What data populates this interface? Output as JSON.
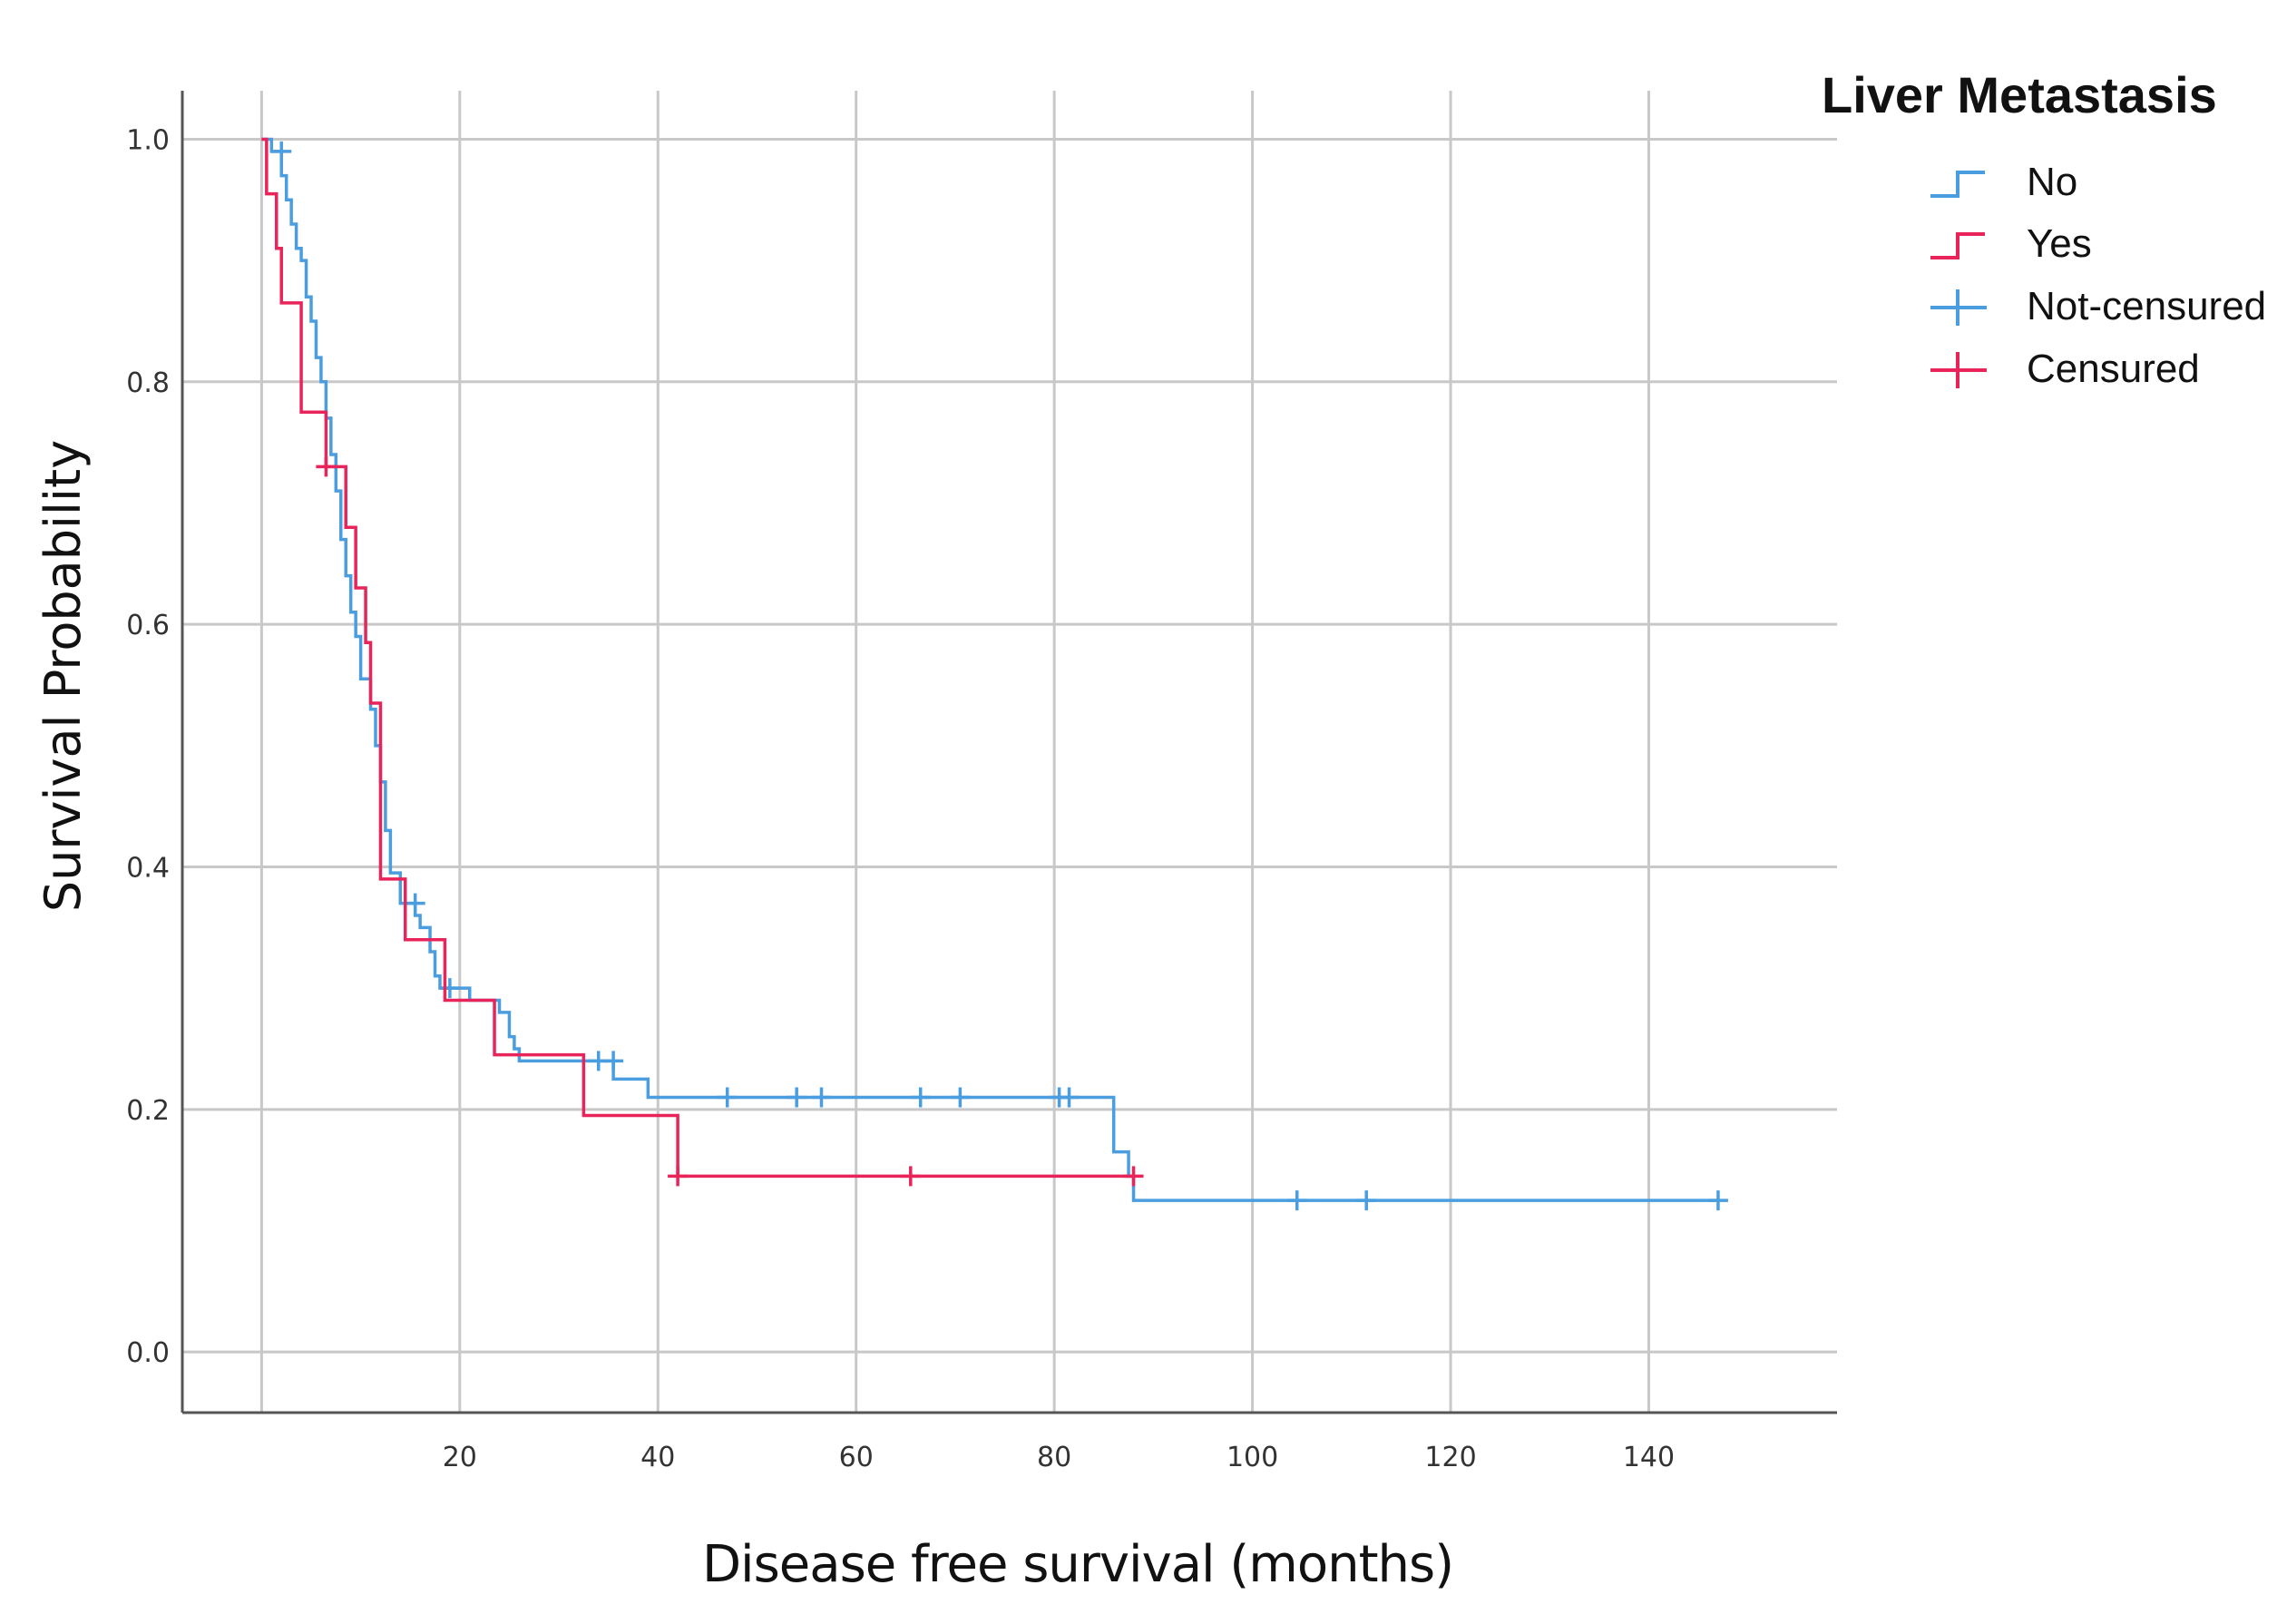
{
  "chart_data": {
    "type": "line",
    "subtype": "kaplan-meier",
    "xlabel": "Disease free survival (months)",
    "ylabel": "Survival Probability",
    "xlim": [
      -8,
      159
    ],
    "ylim": [
      -0.05,
      1.04
    ],
    "x_ticks": [
      20,
      40,
      60,
      80,
      100,
      120,
      140
    ],
    "y_ticks": [
      0.0,
      0.2,
      0.4,
      0.6,
      0.8,
      1.0
    ],
    "x_tick_labels": [
      "20",
      "40",
      "60",
      "80",
      "100",
      "120",
      "140"
    ],
    "y_tick_labels": [
      "0.0",
      "0.2",
      "0.4",
      "0.6",
      "0.8",
      "1.0"
    ],
    "grid": true,
    "legend": {
      "title": "Liver Metastasis",
      "placement": "top-right",
      "entries": [
        {
          "label": "No",
          "kind": "line",
          "color": "#4a9ee0"
        },
        {
          "label": "Yes",
          "kind": "line",
          "color": "#e8245a"
        },
        {
          "label": "Not-censured",
          "kind": "censor",
          "color": "#4a9ee0"
        },
        {
          "label": "Censured",
          "kind": "censor",
          "color": "#e8245a"
        }
      ]
    },
    "series": [
      {
        "name": "No",
        "color": "#4a9ee0",
        "steps": [
          [
            0,
            1.0
          ],
          [
            1,
            0.99
          ],
          [
            2,
            0.97
          ],
          [
            2.5,
            0.95
          ],
          [
            3,
            0.93
          ],
          [
            3.5,
            0.91
          ],
          [
            4,
            0.9
          ],
          [
            4.5,
            0.87
          ],
          [
            5,
            0.85
          ],
          [
            5.5,
            0.82
          ],
          [
            6,
            0.8
          ],
          [
            6.5,
            0.77
          ],
          [
            7,
            0.74
          ],
          [
            7.5,
            0.71
          ],
          [
            8,
            0.67
          ],
          [
            8.5,
            0.64
          ],
          [
            9,
            0.61
          ],
          [
            9.5,
            0.59
          ],
          [
            10,
            0.555
          ],
          [
            11,
            0.53
          ],
          [
            11.5,
            0.5
          ],
          [
            12,
            0.47
          ],
          [
            12.5,
            0.43
          ],
          [
            13,
            0.395
          ],
          [
            14,
            0.37
          ],
          [
            15.5,
            0.36
          ],
          [
            16,
            0.35
          ],
          [
            17,
            0.33
          ],
          [
            17.5,
            0.31
          ],
          [
            18,
            0.3
          ],
          [
            21,
            0.29
          ],
          [
            24,
            0.28
          ],
          [
            25,
            0.26
          ],
          [
            25.5,
            0.25
          ],
          [
            26,
            0.24
          ],
          [
            35.5,
            0.225
          ],
          [
            39,
            0.21
          ],
          [
            86,
            0.165
          ],
          [
            87.5,
            0.145
          ],
          [
            88,
            0.125
          ],
          [
            147,
            0.125
          ]
        ],
        "censored": [
          [
            2,
            0.99
          ],
          [
            15.5,
            0.37
          ],
          [
            19,
            0.3
          ],
          [
            34,
            0.24
          ],
          [
            35.5,
            0.24
          ],
          [
            47,
            0.21
          ],
          [
            54,
            0.21
          ],
          [
            56.5,
            0.21
          ],
          [
            66.5,
            0.21
          ],
          [
            70.5,
            0.21
          ],
          [
            80.5,
            0.21
          ],
          [
            81.5,
            0.21
          ],
          [
            104.5,
            0.125
          ],
          [
            111.5,
            0.125
          ],
          [
            147,
            0.125
          ]
        ]
      },
      {
        "name": "Yes",
        "color": "#e8245a",
        "steps": [
          [
            0,
            1.0
          ],
          [
            0.5,
            0.955
          ],
          [
            1.5,
            0.91
          ],
          [
            2,
            0.865
          ],
          [
            3.5,
            0.865
          ],
          [
            4,
            0.775
          ],
          [
            6,
            0.775
          ],
          [
            6.5,
            0.73
          ],
          [
            8.5,
            0.68
          ],
          [
            9.5,
            0.63
          ],
          [
            10.5,
            0.585
          ],
          [
            11,
            0.535
          ],
          [
            12,
            0.39
          ],
          [
            14.5,
            0.39
          ],
          [
            14.5,
            0.34
          ],
          [
            18,
            0.34
          ],
          [
            18.5,
            0.29
          ],
          [
            23,
            0.29
          ],
          [
            23.5,
            0.245
          ],
          [
            32.5,
            0.245
          ],
          [
            32.5,
            0.195
          ],
          [
            42,
            0.195
          ],
          [
            42,
            0.145
          ],
          [
            88,
            0.145
          ]
        ],
        "censored": [
          [
            6.5,
            0.73
          ],
          [
            42,
            0.145
          ],
          [
            65.5,
            0.145
          ],
          [
            88,
            0.145
          ]
        ]
      }
    ]
  }
}
